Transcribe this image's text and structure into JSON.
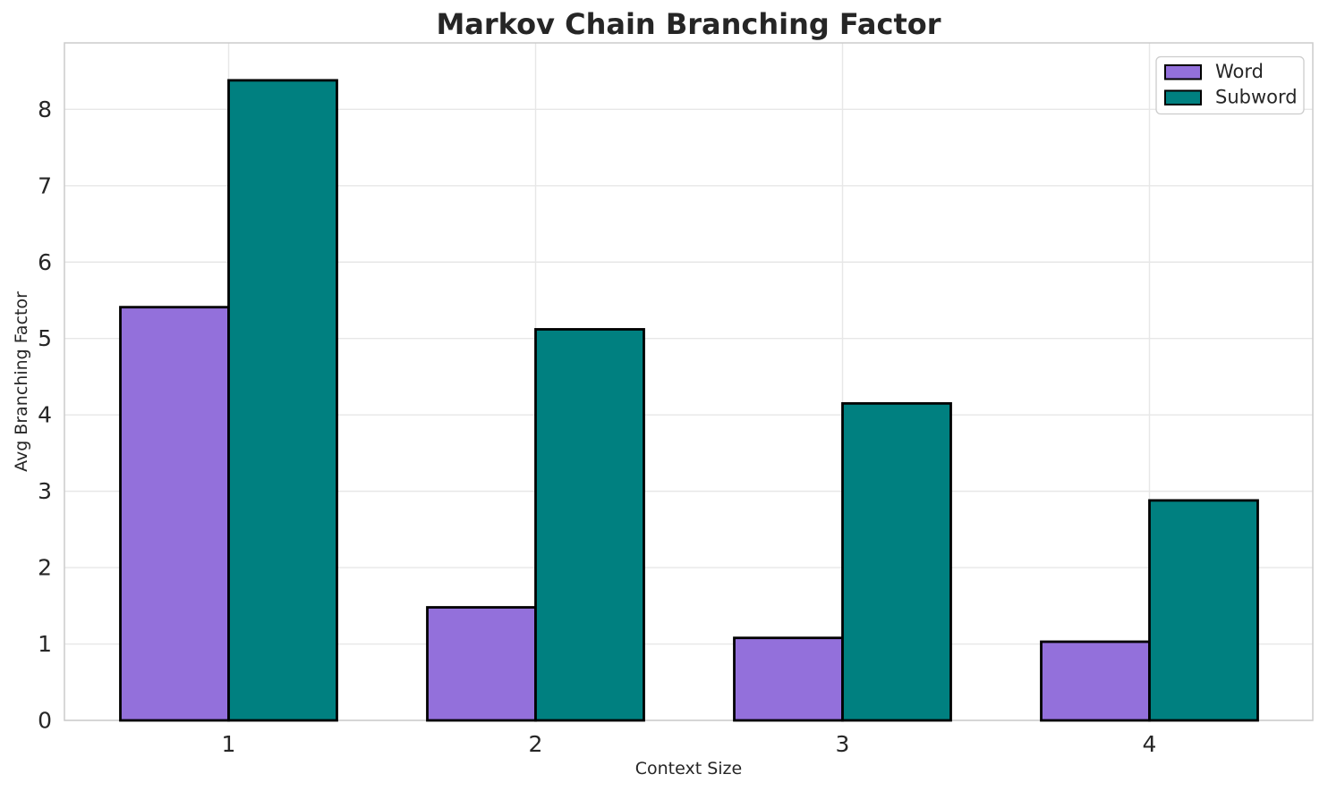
{
  "chart_data": {
    "type": "bar",
    "title": "Markov Chain Branching Factor",
    "xlabel": "Context Size",
    "ylabel": "Avg Branching Factor",
    "categories": [
      "1",
      "2",
      "3",
      "4"
    ],
    "series": [
      {
        "name": "Word",
        "color": "#9370DB",
        "values": [
          5.41,
          1.48,
          1.08,
          1.03
        ]
      },
      {
        "name": "Subword",
        "color": "#008080",
        "values": [
          8.38,
          5.12,
          4.15,
          2.88
        ]
      }
    ],
    "ylim": [
      0,
      8.87
    ],
    "yticks": [
      0,
      1,
      2,
      3,
      4,
      5,
      6,
      7,
      8
    ],
    "grid": true,
    "grid_vertical_at_categories": true,
    "legend_position": "upper right",
    "legend_labels": [
      "Word",
      "Subword"
    ],
    "bar_edge_color": "#000000",
    "text_color": "#262626",
    "grid_color": "#e7e7e7",
    "spine_color": "#cccccc",
    "background": "#ffffff"
  }
}
